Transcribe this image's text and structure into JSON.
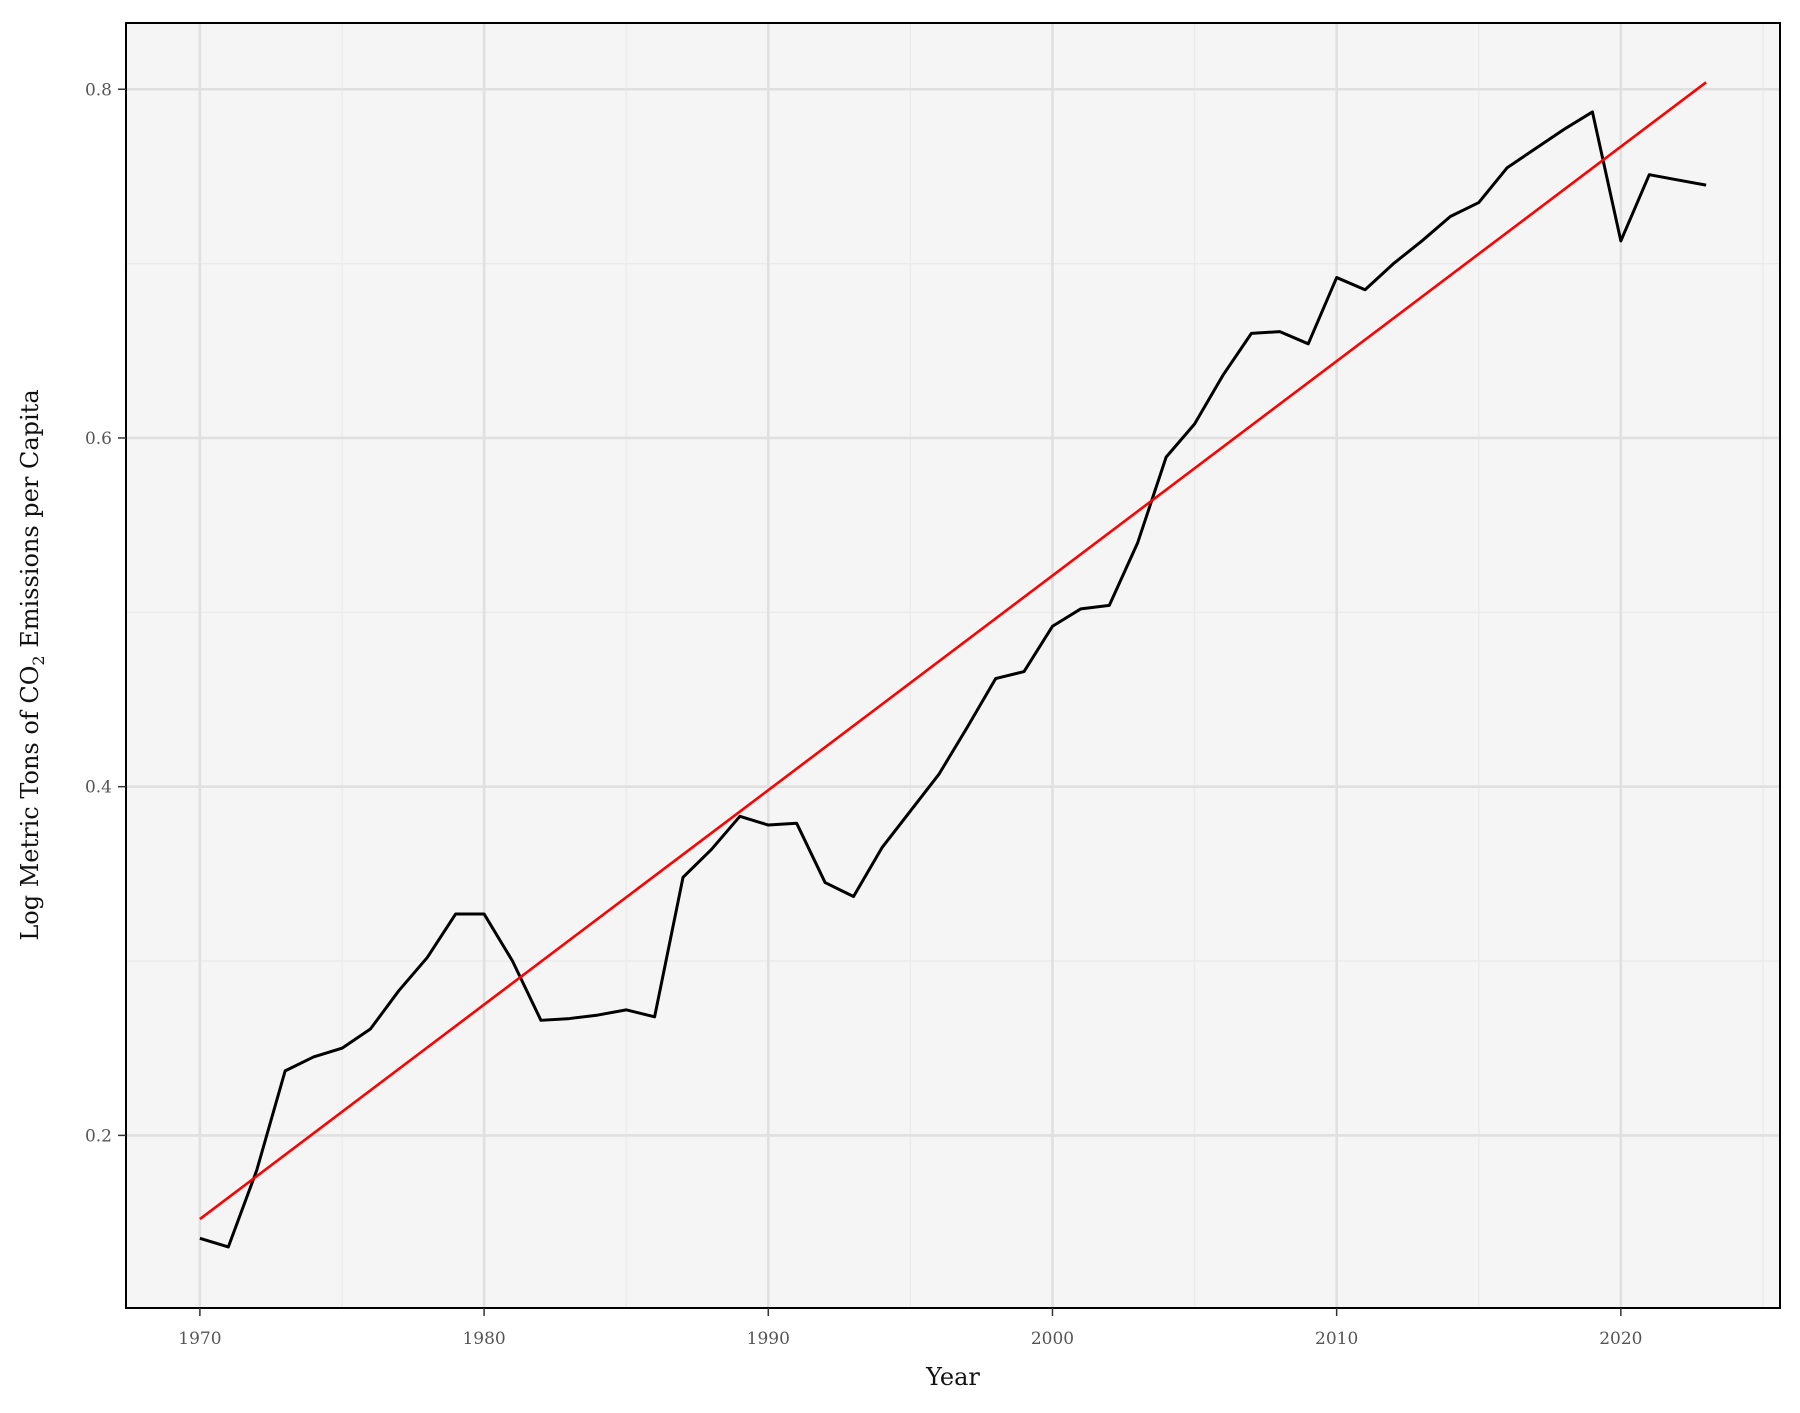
{
  "chart_data": {
    "type": "line",
    "title": "",
    "xlabel": "Year",
    "ylabel_parts": [
      "Log Metric Tons of CO",
      "2",
      " Emissions per Capita"
    ],
    "xlim": [
      1967.4,
      2025.6
    ],
    "ylim": [
      0.101,
      0.838
    ],
    "xticks": [
      1970,
      1980,
      1990,
      2000,
      2010,
      2020
    ],
    "yticks": [
      0.2,
      0.4,
      0.6,
      0.8
    ],
    "ytick_labels": [
      "0.2",
      "0.4",
      "0.6",
      "0.8"
    ],
    "grid": true,
    "legend": "none",
    "colors": {
      "panel_background": "#f5f5f5",
      "major_grid": "#e0e0e0",
      "minor_grid": "#ebebeb",
      "border": "#000000",
      "observed": "#000000",
      "trend": "#ff0000"
    },
    "series": [
      {
        "kind": "observed",
        "x": [
          1970,
          1971,
          1972,
          1973,
          1974,
          1975,
          1976,
          1977,
          1978,
          1979,
          1980,
          1981,
          1982,
          1983,
          1984,
          1985,
          1986,
          1987,
          1988,
          1989,
          1990,
          1991,
          1992,
          1993,
          1994,
          1995,
          1996,
          1997,
          1998,
          1999,
          2000,
          2001,
          2002,
          2003,
          2004,
          2005,
          2006,
          2007,
          2008,
          2009,
          2010,
          2011,
          2012,
          2013,
          2014,
          2015,
          2016,
          2017,
          2018,
          2019,
          2020,
          2021,
          2022,
          2023
        ],
        "y": [
          0.141,
          0.136,
          0.18,
          0.237,
          0.245,
          0.25,
          0.261,
          0.283,
          0.302,
          0.327,
          0.327,
          0.3,
          0.266,
          0.267,
          0.269,
          0.272,
          0.268,
          0.348,
          0.364,
          0.383,
          0.378,
          0.379,
          0.345,
          0.337,
          0.365,
          0.386,
          0.407,
          0.434,
          0.462,
          0.466,
          0.492,
          0.502,
          0.504,
          0.54,
          0.589,
          0.608,
          0.636,
          0.66,
          0.661,
          0.654,
          0.692,
          0.685,
          0.7,
          0.713,
          0.727,
          0.735,
          0.755,
          0.766,
          0.777,
          0.787,
          0.713,
          0.751,
          0.748,
          0.745
        ]
      },
      {
        "kind": "trend",
        "x": [
          1970,
          2023
        ],
        "y": [
          0.152,
          0.804
        ]
      }
    ]
  }
}
